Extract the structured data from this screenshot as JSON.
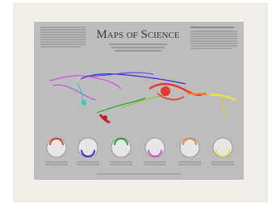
{
  "poster": {
    "title": "Maps of Science"
  }
}
